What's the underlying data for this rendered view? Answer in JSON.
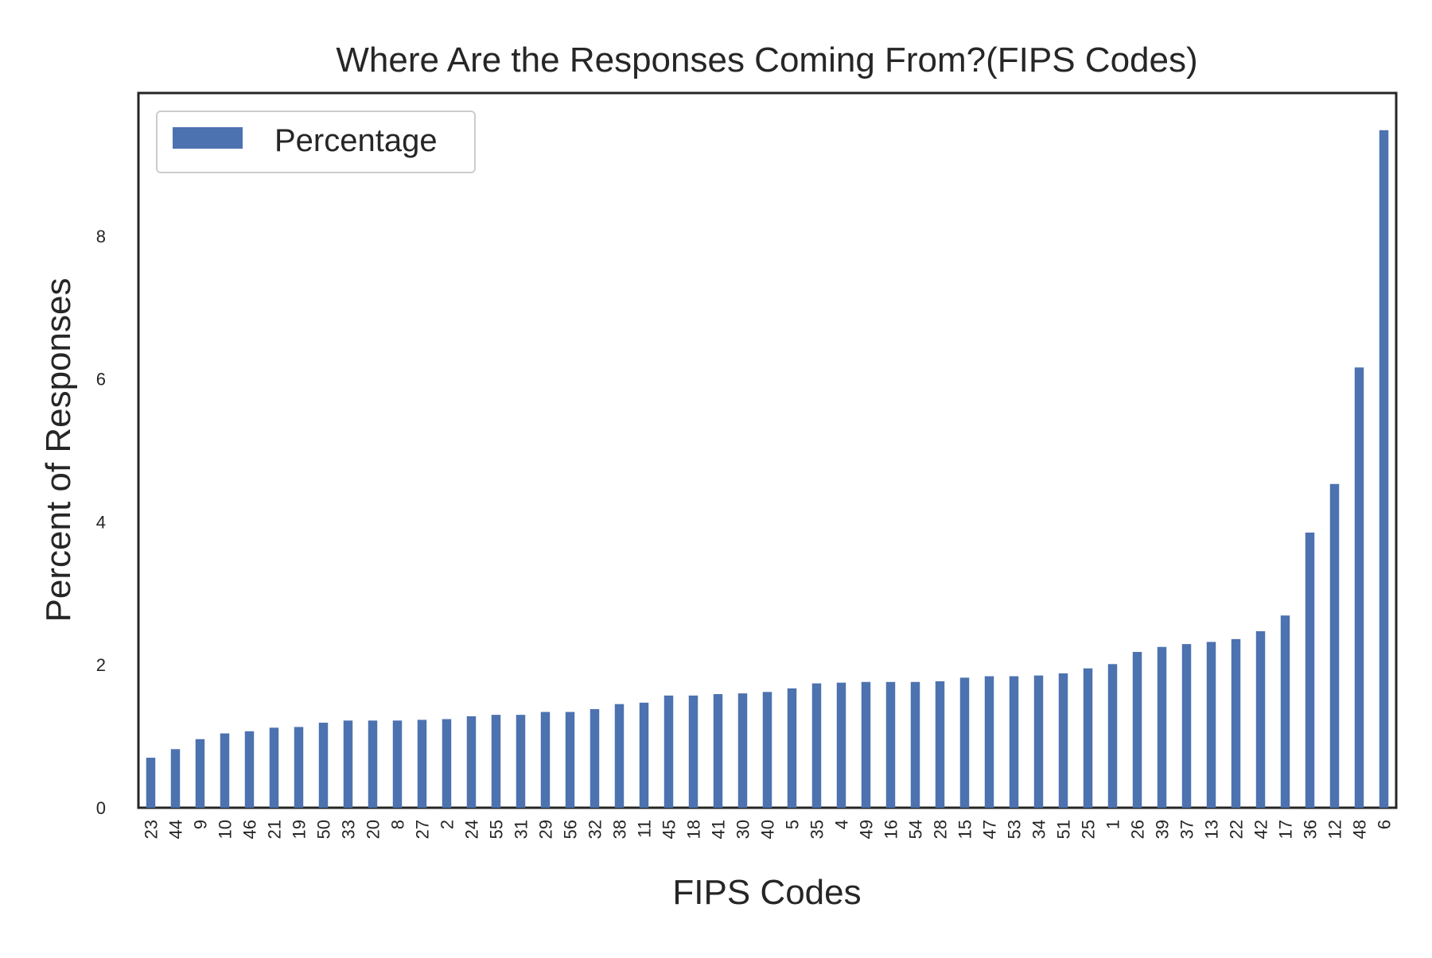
{
  "chart_data": {
    "type": "bar",
    "title": "Where Are the Responses Coming From?(FIPS Codes)",
    "xlabel": "FIPS Codes",
    "ylabel": "Percent of Responses",
    "legend": {
      "entries": [
        "Percentage"
      ],
      "position": "top-left"
    },
    "grid": false,
    "ylim": [
      0,
      10
    ],
    "yticks": [
      0,
      2,
      4,
      6,
      8
    ],
    "categories": [
      "23",
      "44",
      "9",
      "10",
      "46",
      "21",
      "19",
      "50",
      "33",
      "20",
      "8",
      "27",
      "2",
      "24",
      "55",
      "31",
      "29",
      "56",
      "32",
      "38",
      "11",
      "45",
      "18",
      "41",
      "30",
      "40",
      "5",
      "35",
      "4",
      "49",
      "16",
      "54",
      "28",
      "15",
      "47",
      "53",
      "34",
      "51",
      "25",
      "1",
      "26",
      "39",
      "37",
      "13",
      "22",
      "42",
      "17",
      "36",
      "12",
      "48",
      "6"
    ],
    "series": [
      {
        "name": "Percentage",
        "color": "#4c72b0",
        "values": [
          0.7,
          0.82,
          0.96,
          1.04,
          1.07,
          1.12,
          1.13,
          1.19,
          1.22,
          1.22,
          1.22,
          1.23,
          1.24,
          1.28,
          1.3,
          1.3,
          1.34,
          1.34,
          1.38,
          1.45,
          1.47,
          1.57,
          1.57,
          1.59,
          1.6,
          1.62,
          1.67,
          1.74,
          1.75,
          1.76,
          1.76,
          1.76,
          1.77,
          1.82,
          1.84,
          1.84,
          1.85,
          1.88,
          1.95,
          2.01,
          2.18,
          2.25,
          2.29,
          2.32,
          2.36,
          2.47,
          2.69,
          3.85,
          4.53,
          6.16,
          9.48
        ]
      }
    ]
  }
}
